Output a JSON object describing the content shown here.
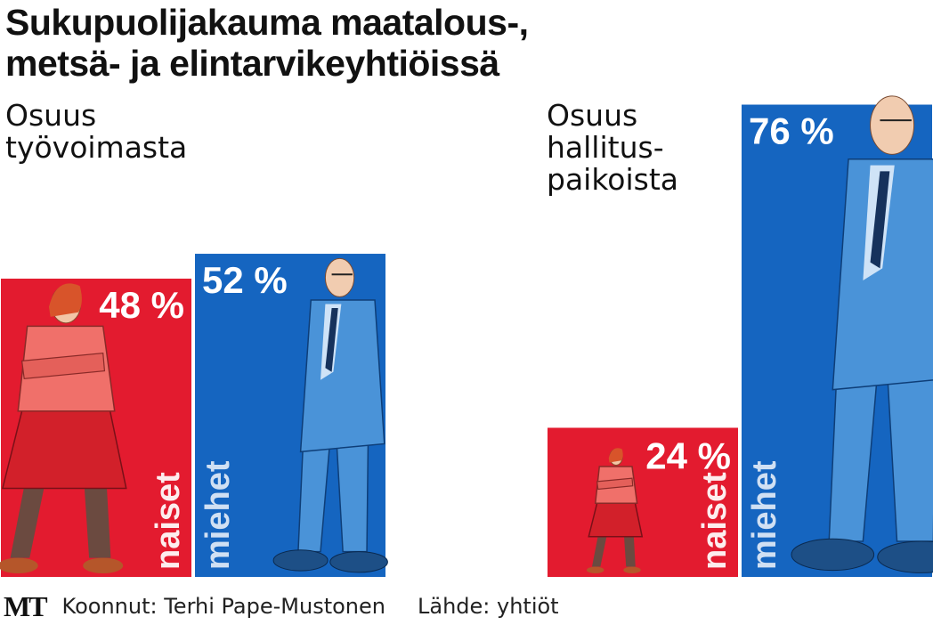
{
  "chart_data": {
    "type": "bar",
    "title": "Sukupuolijakauma maatalous-, metsä- ja elintarvikeyhtiöissä",
    "ylim": [
      0,
      100
    ],
    "groups": [
      {
        "label": "Osuus\ntyövoimasta",
        "bars": [
          {
            "category": "naiset",
            "value": 48,
            "value_label": "48 %",
            "color": "#e31b2f"
          },
          {
            "category": "miehet",
            "value": 52,
            "value_label": "52 %",
            "color": "#1565c0"
          }
        ]
      },
      {
        "label": "Osuus\nhallitus-\npaikoista",
        "bars": [
          {
            "category": "naiset",
            "value": 24,
            "value_label": "24 %",
            "color": "#e31b2f"
          },
          {
            "category": "miehet",
            "value": 76,
            "value_label": "76 %",
            "color": "#1565c0"
          }
        ]
      }
    ]
  },
  "footer": {
    "logo": "MT",
    "compiled_by": "Koonnut: Terhi Pape-Mustonen",
    "source": "Lähde: yhtiöt"
  },
  "colors": {
    "female": "#e31b2f",
    "male": "#1565c0",
    "female_figure": "#f0706a",
    "male_figure": "#4a93d8"
  }
}
